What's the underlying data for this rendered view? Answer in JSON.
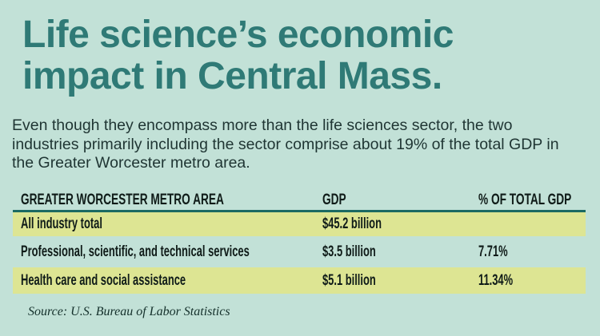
{
  "colors": {
    "background": "#c2e1d7",
    "title_teal": "#2f7a76",
    "body_text": "#1f3533",
    "table_text": "#0f1b18",
    "row_highlight": "#dde593",
    "divider_teal": "#1b6a62"
  },
  "title": {
    "lines": [
      "Life science’s economic",
      "impact in Central Mass."
    ]
  },
  "intro": {
    "lines": [
      "Even though they encompass more than the life sciences sector, the two",
      "industries primarily including the sector comprise about 19% of the total GDP in",
      "the Greater Worcester metro area."
    ]
  },
  "chart_data": {
    "type": "table",
    "title": "Life science’s economic impact in Central Mass.",
    "columns": [
      "GREATER WORCESTER METRO AREA",
      "GDP",
      "% OF TOTAL GDP"
    ],
    "rows": [
      [
        "All industry total",
        "$45.2 billion",
        ""
      ],
      [
        "Professional, scientific, and technical services",
        "$3.5 billion",
        "7.71%"
      ],
      [
        "Health care and social assistance",
        "$5.1 billion",
        "11.34%"
      ]
    ],
    "highlighted_rows": [
      0,
      2
    ],
    "source": "Source: U.S. Bureau of Labor Statistics"
  },
  "source": {
    "text": "Source: U.S. Bureau of Labor Statistics"
  }
}
